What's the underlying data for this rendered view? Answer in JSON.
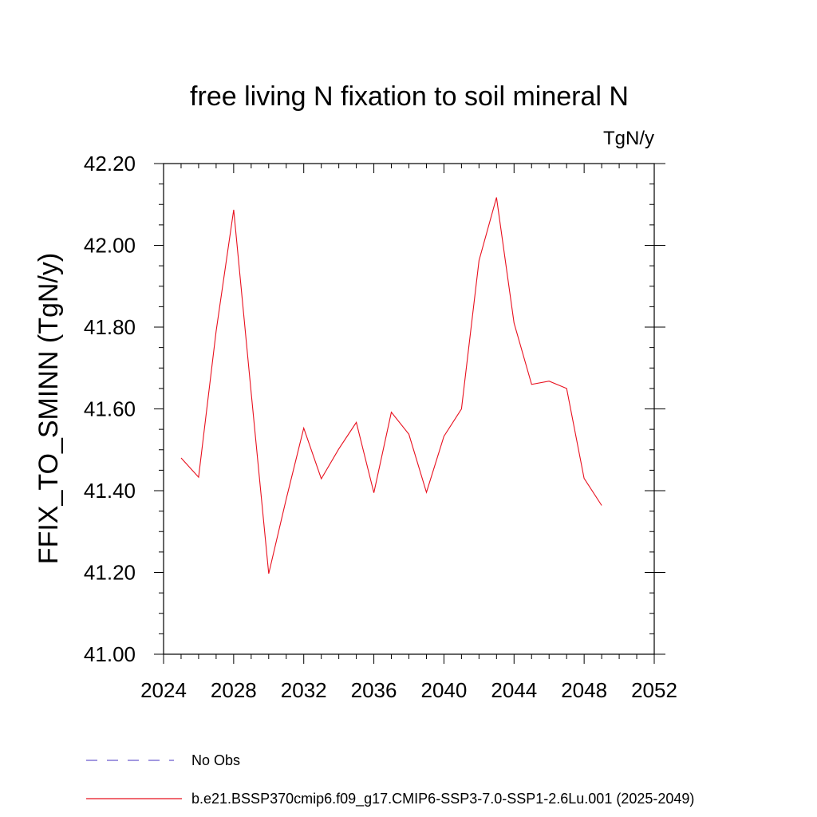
{
  "chart_data": {
    "type": "line",
    "title": "free living N fixation to soil mineral N",
    "units_label": "TgN/y",
    "ylabel": "FFIX_TO_SMINN  (TgN/y)",
    "xlabel": "",
    "xlim": [
      2024,
      2052
    ],
    "ylim": [
      41.0,
      42.2
    ],
    "x_ticks": [
      "2024",
      "2028",
      "2032",
      "2036",
      "2040",
      "2044",
      "2048",
      "2052"
    ],
    "y_ticks": [
      "41.00",
      "41.20",
      "41.40",
      "41.60",
      "41.80",
      "42.00",
      "42.20"
    ],
    "grid": false,
    "series": [
      {
        "name": "b.e21.BSSP370cmip6.f09_g17.CMIP6-SSP3-7.0-SSP1-2.6Lu.001 (2025-2049)",
        "color": "#e8101e",
        "x": [
          2025,
          2026,
          2027,
          2028,
          2029,
          2030,
          2031,
          2032,
          2033,
          2034,
          2035,
          2036,
          2037,
          2038,
          2039,
          2040,
          2041,
          2042,
          2043,
          2044,
          2045,
          2046,
          2047,
          2048,
          2049
        ],
        "y": [
          41.48,
          41.433,
          41.79,
          42.087,
          41.64,
          41.197,
          41.38,
          41.553,
          41.429,
          41.502,
          41.567,
          41.395,
          41.592,
          41.538,
          41.396,
          41.533,
          41.6,
          41.963,
          42.117,
          41.81,
          41.66,
          41.668,
          41.65,
          41.43,
          41.364
        ]
      }
    ],
    "legend": {
      "placement": "bottom-left",
      "entries": [
        {
          "label": "No Obs",
          "style": "dashed",
          "color": "#6a5acd"
        },
        {
          "label": "b.e21.BSSP370cmip6.f09_g17.CMIP6-SSP3-7.0-SSP1-2.6Lu.001 (2025-2049)",
          "style": "solid",
          "color": "#e8101e"
        }
      ]
    }
  }
}
